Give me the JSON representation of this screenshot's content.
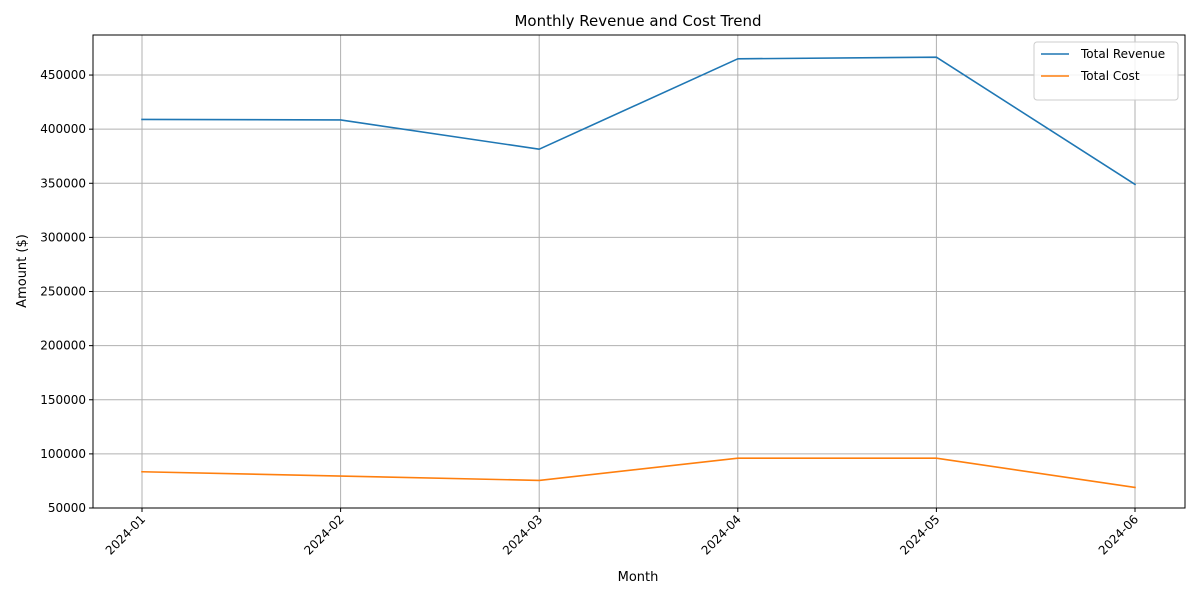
{
  "chart_data": {
    "type": "line",
    "title": "Monthly Revenue and Cost Trend",
    "xlabel": "Month",
    "ylabel": "Amount ($)",
    "categories": [
      "2024-01",
      "2024-02",
      "2024-03",
      "2024-04",
      "2024-05",
      "2024-06"
    ],
    "series": [
      {
        "name": "Total Revenue",
        "color": "#1f77b4",
        "values": [
          409000,
          408500,
          381500,
          465000,
          466500,
          349000
        ]
      },
      {
        "name": "Total Cost",
        "color": "#ff7f0e",
        "values": [
          83500,
          79500,
          75500,
          96000,
          96000,
          69000
        ]
      }
    ],
    "ylim": [
      50000,
      487000
    ],
    "yticks": [
      50000,
      100000,
      150000,
      200000,
      250000,
      300000,
      350000,
      400000,
      450000
    ],
    "grid": true,
    "legend_position": "top-right",
    "xtick_rotation": 45
  }
}
